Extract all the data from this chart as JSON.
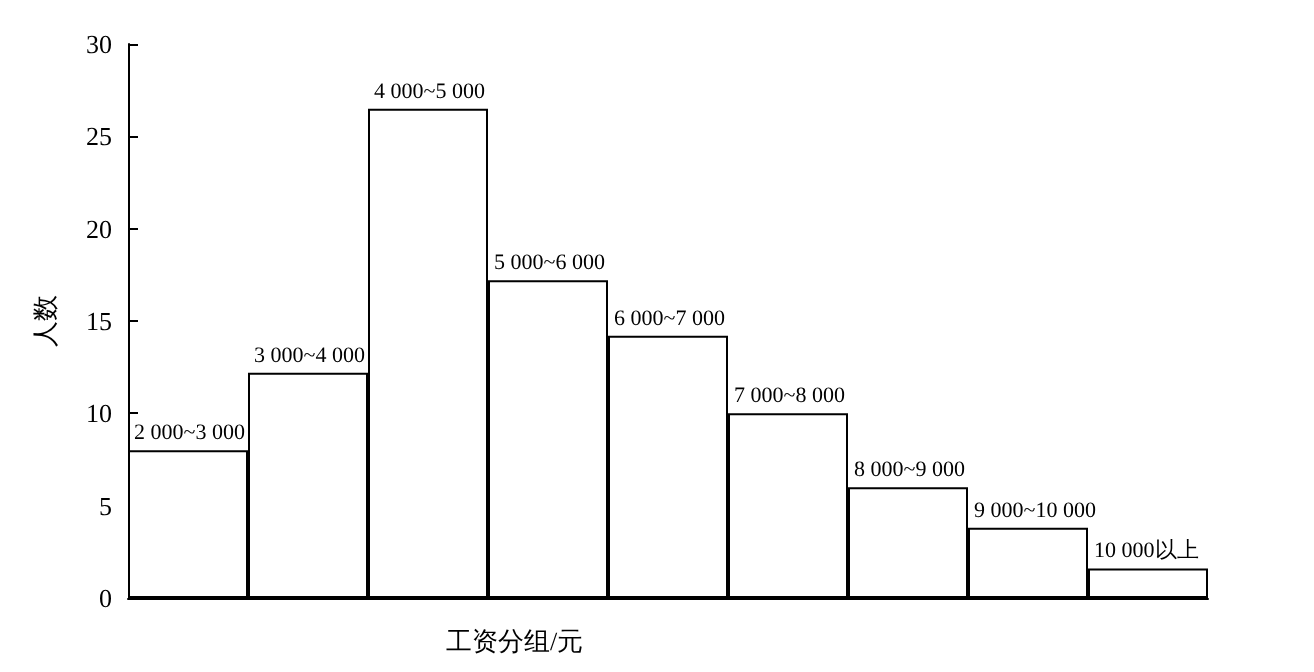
{
  "chart_data": {
    "type": "bar",
    "xlabel": "工资分组/元",
    "ylabel": "人数",
    "categories": [
      "2 000~3 000",
      "3 000~4 000",
      "4 000~5 000",
      "5 000~6 000",
      "6 000~7 000",
      "7 000~8 000",
      "8 000~9 000",
      "9 000~10 000",
      "10 000以上"
    ],
    "values": [
      8,
      12.2,
      26.5,
      17.2,
      14.2,
      10,
      6,
      3.8,
      1.6
    ],
    "color": "#ffffff",
    "ylim": [
      0,
      30
    ],
    "yticks": [
      0,
      5,
      10,
      15,
      20,
      25,
      30
    ],
    "grid": false
  }
}
